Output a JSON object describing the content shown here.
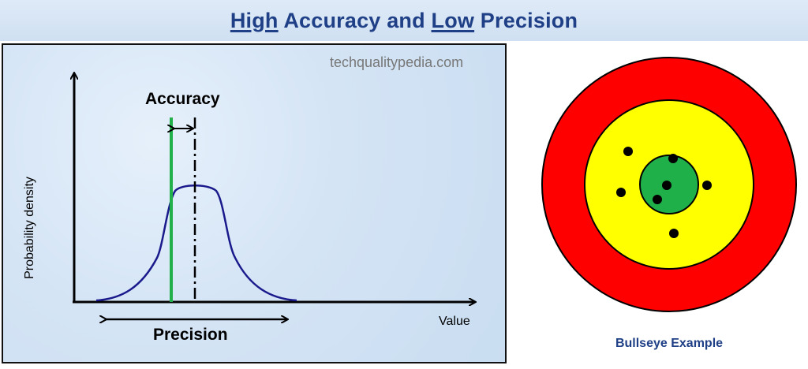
{
  "title": {
    "part1": "High",
    "part2": " Accuracy and ",
    "part3": "Low",
    "part4": " Precision"
  },
  "graph": {
    "watermark": "techqualitypedia.com",
    "y_axis_label": "Probability density",
    "x_axis_label": "Value",
    "accuracy_label": "Accuracy",
    "precision_label": "Precision",
    "colors": {
      "curve": "#1a1a8c",
      "reference_line": "#22b04a",
      "mean_line": "#000000"
    }
  },
  "target": {
    "caption": "Bullseye Example",
    "colors": {
      "outer_ring": "#ff0000",
      "middle_ring": "#ffff00",
      "inner_ring": "#1fb04a",
      "hits": "#000000"
    }
  }
}
